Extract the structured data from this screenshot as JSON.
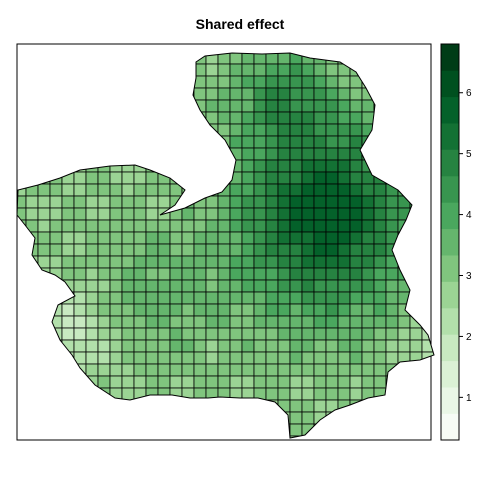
{
  "title": "Shared effect",
  "map": {
    "type": "choropleth-grid",
    "cell_outline": "#000000",
    "region_outline": "#000000"
  },
  "legend": {
    "placement": "right",
    "range": [
      0.3,
      6.8
    ],
    "ticks": [
      1,
      2,
      3,
      4,
      5,
      6
    ],
    "tick_labels": [
      "1",
      "2",
      "3",
      "4",
      "5",
      "6"
    ],
    "colors": [
      "#f7fcf5",
      "#eaf7e6",
      "#dbf1d5",
      "#c8e9c1",
      "#b2e0ab",
      "#9bd494",
      "#80c57e",
      "#65b66d",
      "#4aa75e",
      "#38954f",
      "#268341",
      "#137134",
      "#04612a",
      "#00501f",
      "#003c16"
    ]
  }
}
